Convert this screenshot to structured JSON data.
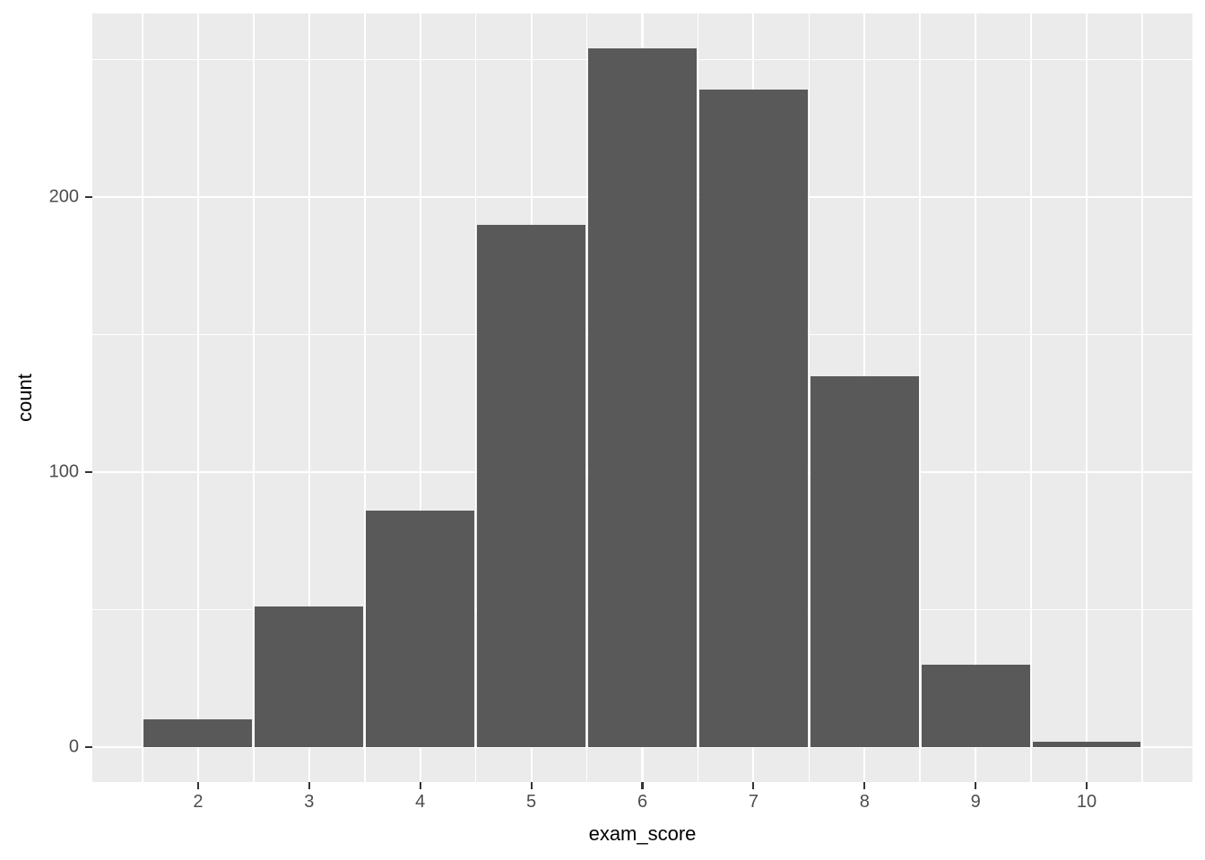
{
  "chart_data": {
    "type": "bar",
    "subtype": "histogram",
    "title": "",
    "xlabel": "exam_score",
    "ylabel": "count",
    "categories": [
      2,
      3,
      4,
      5,
      6,
      7,
      8,
      9,
      10
    ],
    "values": [
      10,
      51,
      86,
      190,
      254,
      239,
      135,
      30,
      2
    ],
    "bin_width": 1,
    "xlim": [
      1.048,
      10.952
    ],
    "ylim": [
      -12.7,
      266.8
    ],
    "x_major_ticks": [
      2,
      3,
      4,
      5,
      6,
      7,
      8,
      9,
      10
    ],
    "x_tick_labels": [
      "2",
      "3",
      "4",
      "5",
      "6",
      "7",
      "8",
      "9",
      "10"
    ],
    "y_major_ticks": [
      0,
      100,
      200
    ],
    "y_tick_labels": [
      "0",
      "100",
      "200"
    ],
    "y_minor_gridlines": [
      50,
      150,
      250
    ],
    "grid": true,
    "legend": false
  },
  "colors": {
    "page_background": "#FFFFFF",
    "panel_background": "#EBEBEB",
    "gridline": "#FFFFFF",
    "bar_fill": "#595959",
    "tick_label": "#4D4D4D",
    "tick_mark": "#333333",
    "axis_title": "#000000"
  }
}
